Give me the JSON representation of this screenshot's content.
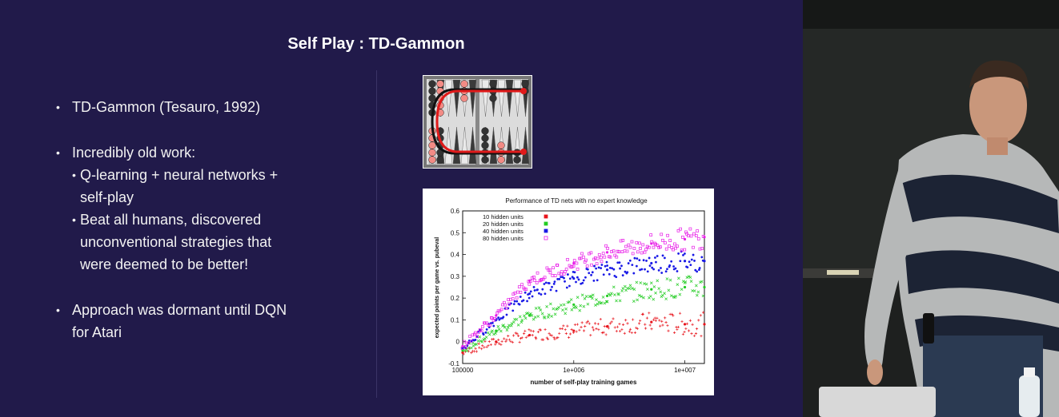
{
  "slide": {
    "title": "Self Play : TD-Gammon",
    "bullets": [
      {
        "text": "TD-Gammon (Tesauro, 1992)"
      },
      {
        "text": "Incredibly old work:",
        "subs": [
          "Q-learning + neural networks + self-play",
          "Beat all humans, discovered unconventional strategies that were deemed to be better!"
        ]
      },
      {
        "text": "Approach was dormant until DQN for Atari"
      }
    ],
    "bullet_lines": {
      "b1": "TD-Gammon (Tesauro, 1992)",
      "b2": "Incredibly old work:",
      "s1_l1": "Q-learning + neural networks +",
      "s1_l2": "self-play",
      "s2_l1": "Beat all humans, discovered",
      "s2_l2": "unconventional strategies that",
      "s2_l3": "were deemed to be better!",
      "b3_l1": "Approach was dormant until DQN",
      "b3_l2": "for Atari"
    },
    "bullet_glyph": "•"
  },
  "chart_data": {
    "type": "scatter",
    "title": "Performance of TD nets with no expert knowledge",
    "xlabel": "number of self-play training games",
    "ylabel": "expected points per game vs. pubeval",
    "x_scale": "log",
    "xlim": [
      100000,
      15000000
    ],
    "ylim": [
      -0.1,
      0.6
    ],
    "x_ticks": [
      "100000",
      "1e+006",
      "1e+007"
    ],
    "y_ticks": [
      "-0.1",
      "0",
      "0.1",
      "0.2",
      "0.3",
      "0.4",
      "0.5",
      "0.6"
    ],
    "legend_position": "top-left",
    "series": [
      {
        "name": "10 hidden units",
        "color": "#e8141c",
        "marker": "+",
        "x": [
          100000,
          200000,
          400000,
          1000000,
          2000000,
          5000000,
          10000000,
          15000000
        ],
        "y": [
          -0.05,
          0.0,
          0.03,
          0.05,
          0.07,
          0.09,
          0.08,
          0.08
        ]
      },
      {
        "name": "20 hidden units",
        "color": "#22cc22",
        "marker": "x",
        "x": [
          100000,
          200000,
          400000,
          1000000,
          2000000,
          5000000,
          10000000,
          15000000
        ],
        "y": [
          -0.04,
          0.05,
          0.12,
          0.17,
          0.21,
          0.24,
          0.25,
          0.25
        ]
      },
      {
        "name": "40 hidden units",
        "color": "#1a1ae6",
        "marker": "*",
        "x": [
          100000,
          200000,
          400000,
          1000000,
          2000000,
          5000000,
          10000000,
          15000000
        ],
        "y": [
          -0.03,
          0.1,
          0.22,
          0.29,
          0.33,
          0.36,
          0.37,
          0.37
        ]
      },
      {
        "name": "80 hidden units",
        "color": "#e81ce8",
        "marker": "square",
        "x": [
          100000,
          200000,
          400000,
          1000000,
          2000000,
          5000000,
          10000000,
          15000000
        ],
        "y": [
          -0.02,
          0.12,
          0.28,
          0.36,
          0.41,
          0.45,
          0.47,
          0.48
        ]
      }
    ]
  },
  "board_image": {
    "colors": {
      "frame": "#6b6b6b",
      "dark": "#333333",
      "light": "#f28b85",
      "path": "#e01a1a"
    }
  },
  "video_feed": {
    "colors": {
      "background": "#1b1d1c",
      "sweater_dark": "#1c2334",
      "sweater_light": "#b7b9b9",
      "skin": "#c9977b"
    }
  }
}
